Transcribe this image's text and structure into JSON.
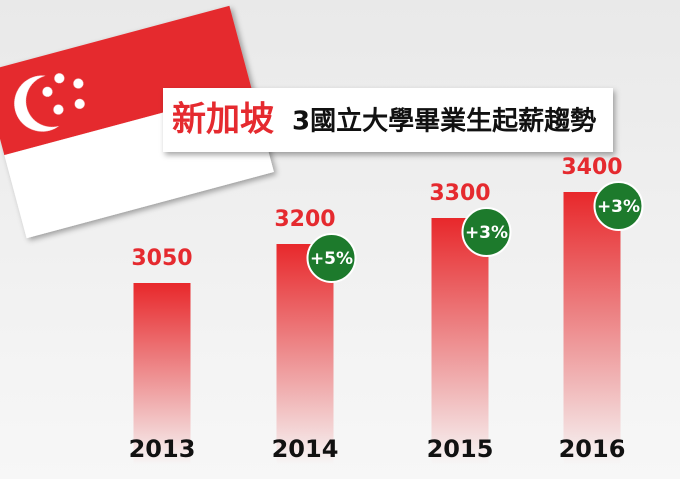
{
  "chart_data": {
    "type": "bar",
    "title_highlight": "新加坡",
    "title": "3國立大學畢業生起薪趨勢",
    "categories": [
      "2013",
      "2014",
      "2015",
      "2016"
    ],
    "values": [
      3050,
      3200,
      3300,
      3400
    ],
    "annotations": [
      null,
      "+5%",
      "+3%",
      "+3%"
    ],
    "color": "#e8282b",
    "ylim": [
      2350,
      3450
    ]
  }
}
